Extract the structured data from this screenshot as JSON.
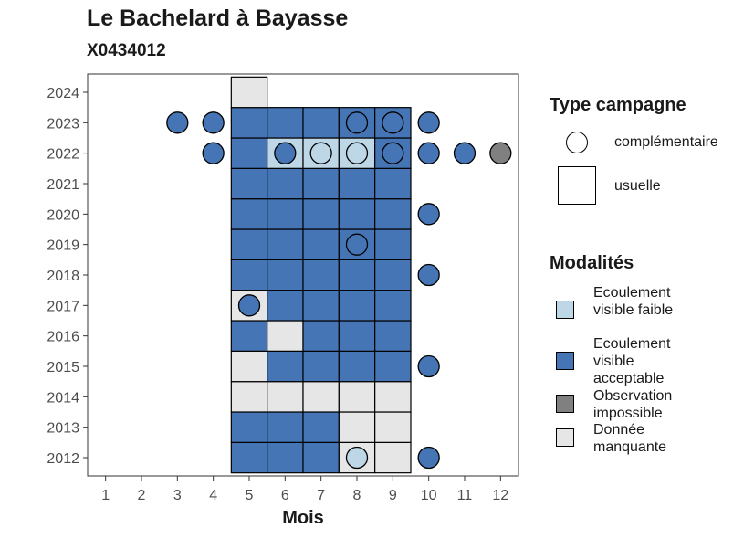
{
  "chart_data": {
    "type": "heatmap",
    "title": "Le Bachelard à Bayasse",
    "subtitle": "X0434012",
    "xlabel": "Mois",
    "ylabel": "",
    "x_ticks": [
      "1",
      "2",
      "3",
      "4",
      "5",
      "6",
      "7",
      "8",
      "9",
      "10",
      "11",
      "12"
    ],
    "y_ticks": [
      "2012",
      "2013",
      "2014",
      "2015",
      "2016",
      "2017",
      "2018",
      "2019",
      "2020",
      "2021",
      "2022",
      "2023",
      "2024"
    ],
    "xlim": [
      0.5,
      12.5
    ],
    "ylim": [
      2011.4,
      2024.6
    ],
    "grid": false,
    "colors": {
      "ecoulement_faible": "#bdd7e7",
      "ecoulement_acceptable": "#4575b4",
      "observation_impossible": "#808080",
      "donnee_manquante": "#e6e6e6"
    },
    "squares": [
      {
        "year": 2012,
        "month": 5,
        "modalite": "Ecoulement visible acceptable"
      },
      {
        "year": 2012,
        "month": 6,
        "modalite": "Ecoulement visible acceptable"
      },
      {
        "year": 2012,
        "month": 7,
        "modalite": "Ecoulement visible acceptable"
      },
      {
        "year": 2012,
        "month": 8,
        "modalite": "Donnée manquante"
      },
      {
        "year": 2012,
        "month": 9,
        "modalite": "Donnée manquante"
      },
      {
        "year": 2013,
        "month": 5,
        "modalite": "Ecoulement visible acceptable"
      },
      {
        "year": 2013,
        "month": 6,
        "modalite": "Ecoulement visible acceptable"
      },
      {
        "year": 2013,
        "month": 7,
        "modalite": "Ecoulement visible acceptable"
      },
      {
        "year": 2013,
        "month": 8,
        "modalite": "Donnée manquante"
      },
      {
        "year": 2013,
        "month": 9,
        "modalite": "Donnée manquante"
      },
      {
        "year": 2014,
        "month": 5,
        "modalite": "Donnée manquante"
      },
      {
        "year": 2014,
        "month": 6,
        "modalite": "Donnée manquante"
      },
      {
        "year": 2014,
        "month": 7,
        "modalite": "Donnée manquante"
      },
      {
        "year": 2014,
        "month": 8,
        "modalite": "Donnée manquante"
      },
      {
        "year": 2014,
        "month": 9,
        "modalite": "Donnée manquante"
      },
      {
        "year": 2015,
        "month": 5,
        "modalite": "Donnée manquante"
      },
      {
        "year": 2015,
        "month": 6,
        "modalite": "Ecoulement visible acceptable"
      },
      {
        "year": 2015,
        "month": 7,
        "modalite": "Ecoulement visible acceptable"
      },
      {
        "year": 2015,
        "month": 8,
        "modalite": "Ecoulement visible acceptable"
      },
      {
        "year": 2015,
        "month": 9,
        "modalite": "Ecoulement visible acceptable"
      },
      {
        "year": 2016,
        "month": 5,
        "modalite": "Ecoulement visible acceptable"
      },
      {
        "year": 2016,
        "month": 6,
        "modalite": "Donnée manquante"
      },
      {
        "year": 2016,
        "month": 7,
        "modalite": "Ecoulement visible acceptable"
      },
      {
        "year": 2016,
        "month": 8,
        "modalite": "Ecoulement visible acceptable"
      },
      {
        "year": 2016,
        "month": 9,
        "modalite": "Ecoulement visible acceptable"
      },
      {
        "year": 2017,
        "month": 5,
        "modalite": "Donnée manquante"
      },
      {
        "year": 2017,
        "month": 6,
        "modalite": "Ecoulement visible acceptable"
      },
      {
        "year": 2017,
        "month": 7,
        "modalite": "Ecoulement visible acceptable"
      },
      {
        "year": 2017,
        "month": 8,
        "modalite": "Ecoulement visible acceptable"
      },
      {
        "year": 2017,
        "month": 9,
        "modalite": "Ecoulement visible acceptable"
      },
      {
        "year": 2018,
        "month": 5,
        "modalite": "Ecoulement visible acceptable"
      },
      {
        "year": 2018,
        "month": 6,
        "modalite": "Ecoulement visible acceptable"
      },
      {
        "year": 2018,
        "month": 7,
        "modalite": "Ecoulement visible acceptable"
      },
      {
        "year": 2018,
        "month": 8,
        "modalite": "Ecoulement visible acceptable"
      },
      {
        "year": 2018,
        "month": 9,
        "modalite": "Ecoulement visible acceptable"
      },
      {
        "year": 2019,
        "month": 5,
        "modalite": "Ecoulement visible acceptable"
      },
      {
        "year": 2019,
        "month": 6,
        "modalite": "Ecoulement visible acceptable"
      },
      {
        "year": 2019,
        "month": 7,
        "modalite": "Ecoulement visible acceptable"
      },
      {
        "year": 2019,
        "month": 8,
        "modalite": "Ecoulement visible acceptable"
      },
      {
        "year": 2019,
        "month": 9,
        "modalite": "Ecoulement visible acceptable"
      },
      {
        "year": 2020,
        "month": 5,
        "modalite": "Ecoulement visible acceptable"
      },
      {
        "year": 2020,
        "month": 6,
        "modalite": "Ecoulement visible acceptable"
      },
      {
        "year": 2020,
        "month": 7,
        "modalite": "Ecoulement visible acceptable"
      },
      {
        "year": 2020,
        "month": 8,
        "modalite": "Ecoulement visible acceptable"
      },
      {
        "year": 2020,
        "month": 9,
        "modalite": "Ecoulement visible acceptable"
      },
      {
        "year": 2021,
        "month": 5,
        "modalite": "Ecoulement visible acceptable"
      },
      {
        "year": 2021,
        "month": 6,
        "modalite": "Ecoulement visible acceptable"
      },
      {
        "year": 2021,
        "month": 7,
        "modalite": "Ecoulement visible acceptable"
      },
      {
        "year": 2021,
        "month": 8,
        "modalite": "Ecoulement visible acceptable"
      },
      {
        "year": 2021,
        "month": 9,
        "modalite": "Ecoulement visible acceptable"
      },
      {
        "year": 2022,
        "month": 5,
        "modalite": "Ecoulement visible acceptable"
      },
      {
        "year": 2022,
        "month": 6,
        "modalite": "Ecoulement visible faible"
      },
      {
        "year": 2022,
        "month": 7,
        "modalite": "Ecoulement visible faible"
      },
      {
        "year": 2022,
        "month": 8,
        "modalite": "Ecoulement visible faible"
      },
      {
        "year": 2022,
        "month": 9,
        "modalite": "Ecoulement visible acceptable"
      },
      {
        "year": 2023,
        "month": 5,
        "modalite": "Ecoulement visible acceptable"
      },
      {
        "year": 2023,
        "month": 6,
        "modalite": "Ecoulement visible acceptable"
      },
      {
        "year": 2023,
        "month": 7,
        "modalite": "Ecoulement visible acceptable"
      },
      {
        "year": 2023,
        "month": 8,
        "modalite": "Ecoulement visible acceptable"
      },
      {
        "year": 2023,
        "month": 9,
        "modalite": "Ecoulement visible acceptable"
      },
      {
        "year": 2024,
        "month": 5,
        "modalite": "Donnée manquante"
      }
    ],
    "circles": [
      {
        "year": 2012,
        "month": 8,
        "modalite": "Ecoulement visible faible"
      },
      {
        "year": 2012,
        "month": 10,
        "modalite": "Ecoulement visible acceptable"
      },
      {
        "year": 2015,
        "month": 10,
        "modalite": "Ecoulement visible acceptable"
      },
      {
        "year": 2017,
        "month": 5,
        "modalite": "Ecoulement visible acceptable"
      },
      {
        "year": 2018,
        "month": 10,
        "modalite": "Ecoulement visible acceptable"
      },
      {
        "year": 2019,
        "month": 8,
        "modalite": "Ecoulement visible acceptable"
      },
      {
        "year": 2020,
        "month": 10,
        "modalite": "Ecoulement visible acceptable"
      },
      {
        "year": 2022,
        "month": 4,
        "modalite": "Ecoulement visible acceptable"
      },
      {
        "year": 2022,
        "month": 6,
        "modalite": "Ecoulement visible acceptable"
      },
      {
        "year": 2022,
        "month": 7,
        "modalite": "Ecoulement visible faible"
      },
      {
        "year": 2022,
        "month": 8,
        "modalite": "Ecoulement visible faible"
      },
      {
        "year": 2022,
        "month": 9,
        "modalite": "Ecoulement visible acceptable"
      },
      {
        "year": 2022,
        "month": 10,
        "modalite": "Ecoulement visible acceptable"
      },
      {
        "year": 2022,
        "month": 11,
        "modalite": "Ecoulement visible acceptable"
      },
      {
        "year": 2022,
        "month": 12,
        "modalite": "Observation impossible"
      },
      {
        "year": 2023,
        "month": 3,
        "modalite": "Ecoulement visible acceptable"
      },
      {
        "year": 2023,
        "month": 4,
        "modalite": "Ecoulement visible acceptable"
      },
      {
        "year": 2023,
        "month": 8,
        "modalite": "Ecoulement visible acceptable"
      },
      {
        "year": 2023,
        "month": 9,
        "modalite": "Ecoulement visible acceptable"
      },
      {
        "year": 2023,
        "month": 10,
        "modalite": "Ecoulement visible acceptable"
      }
    ]
  },
  "legend": {
    "type_title": "Type campagne",
    "type_items": [
      {
        "label": "complémentaire",
        "shape": "circle"
      },
      {
        "label": "usuelle",
        "shape": "square"
      }
    ],
    "modalites_title": "Modalités",
    "modalites_items": [
      {
        "label": "Ecoulement visible faible",
        "color": "#bdd7e7"
      },
      {
        "label": "Ecoulement visible acceptable",
        "color": "#4575b4"
      },
      {
        "label": "Observation impossible",
        "color": "#808080"
      },
      {
        "label": "Donnée manquante",
        "color": "#e6e6e6"
      }
    ]
  }
}
